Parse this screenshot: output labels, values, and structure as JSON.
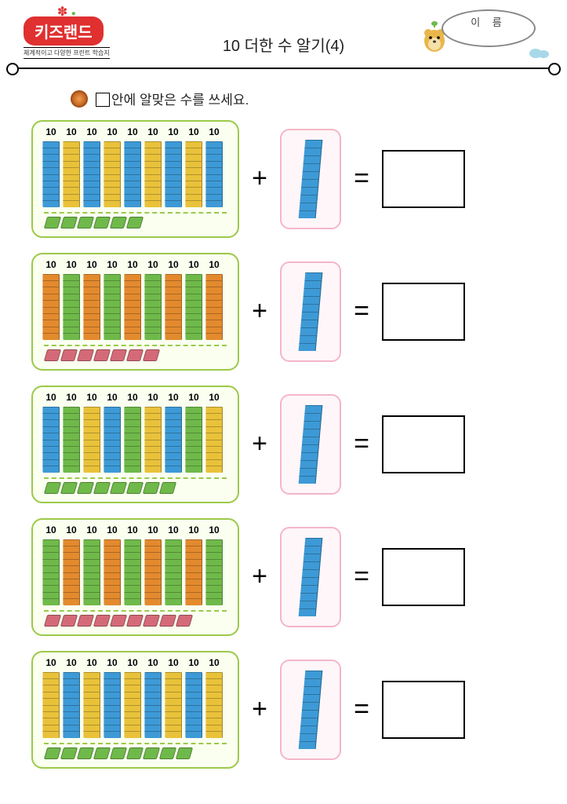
{
  "header": {
    "logo_text": "키즈랜드",
    "logo_sub": "체계적이고 다양한 프린트 학습지",
    "title": "10 더한 수 알기(4)",
    "name_label": "이 름"
  },
  "instruction": "안에 알맞은 수를 쓰세요.",
  "colors": {
    "blue": "#3d9ad6",
    "yellow": "#e9c23a",
    "green": "#6fb94a",
    "orange": "#e38a2e",
    "pink": "#d46a78",
    "panel_border": "#9cc94a",
    "add_border": "#f4b6c7"
  },
  "ten_label": "10",
  "problems": [
    {
      "rods": [
        "blue",
        "yellow",
        "blue",
        "yellow",
        "blue",
        "yellow",
        "blue",
        "yellow",
        "blue"
      ],
      "ones_count": 6,
      "ones_color": "green",
      "add_color": "blue"
    },
    {
      "rods": [
        "orange",
        "green",
        "orange",
        "green",
        "orange",
        "green",
        "orange",
        "green",
        "orange"
      ],
      "ones_count": 7,
      "ones_color": "pink",
      "add_color": "blue"
    },
    {
      "rods": [
        "blue",
        "green",
        "yellow",
        "blue",
        "green",
        "yellow",
        "blue",
        "green",
        "yellow"
      ],
      "ones_count": 8,
      "ones_color": "green",
      "add_color": "blue"
    },
    {
      "rods": [
        "green",
        "orange",
        "green",
        "orange",
        "green",
        "orange",
        "green",
        "orange",
        "green"
      ],
      "ones_count": 9,
      "ones_color": "pink",
      "add_color": "blue"
    },
    {
      "rods": [
        "yellow",
        "blue",
        "yellow",
        "blue",
        "yellow",
        "blue",
        "yellow",
        "blue",
        "yellow"
      ],
      "ones_count": 9,
      "ones_color": "green",
      "add_color": "blue"
    }
  ]
}
